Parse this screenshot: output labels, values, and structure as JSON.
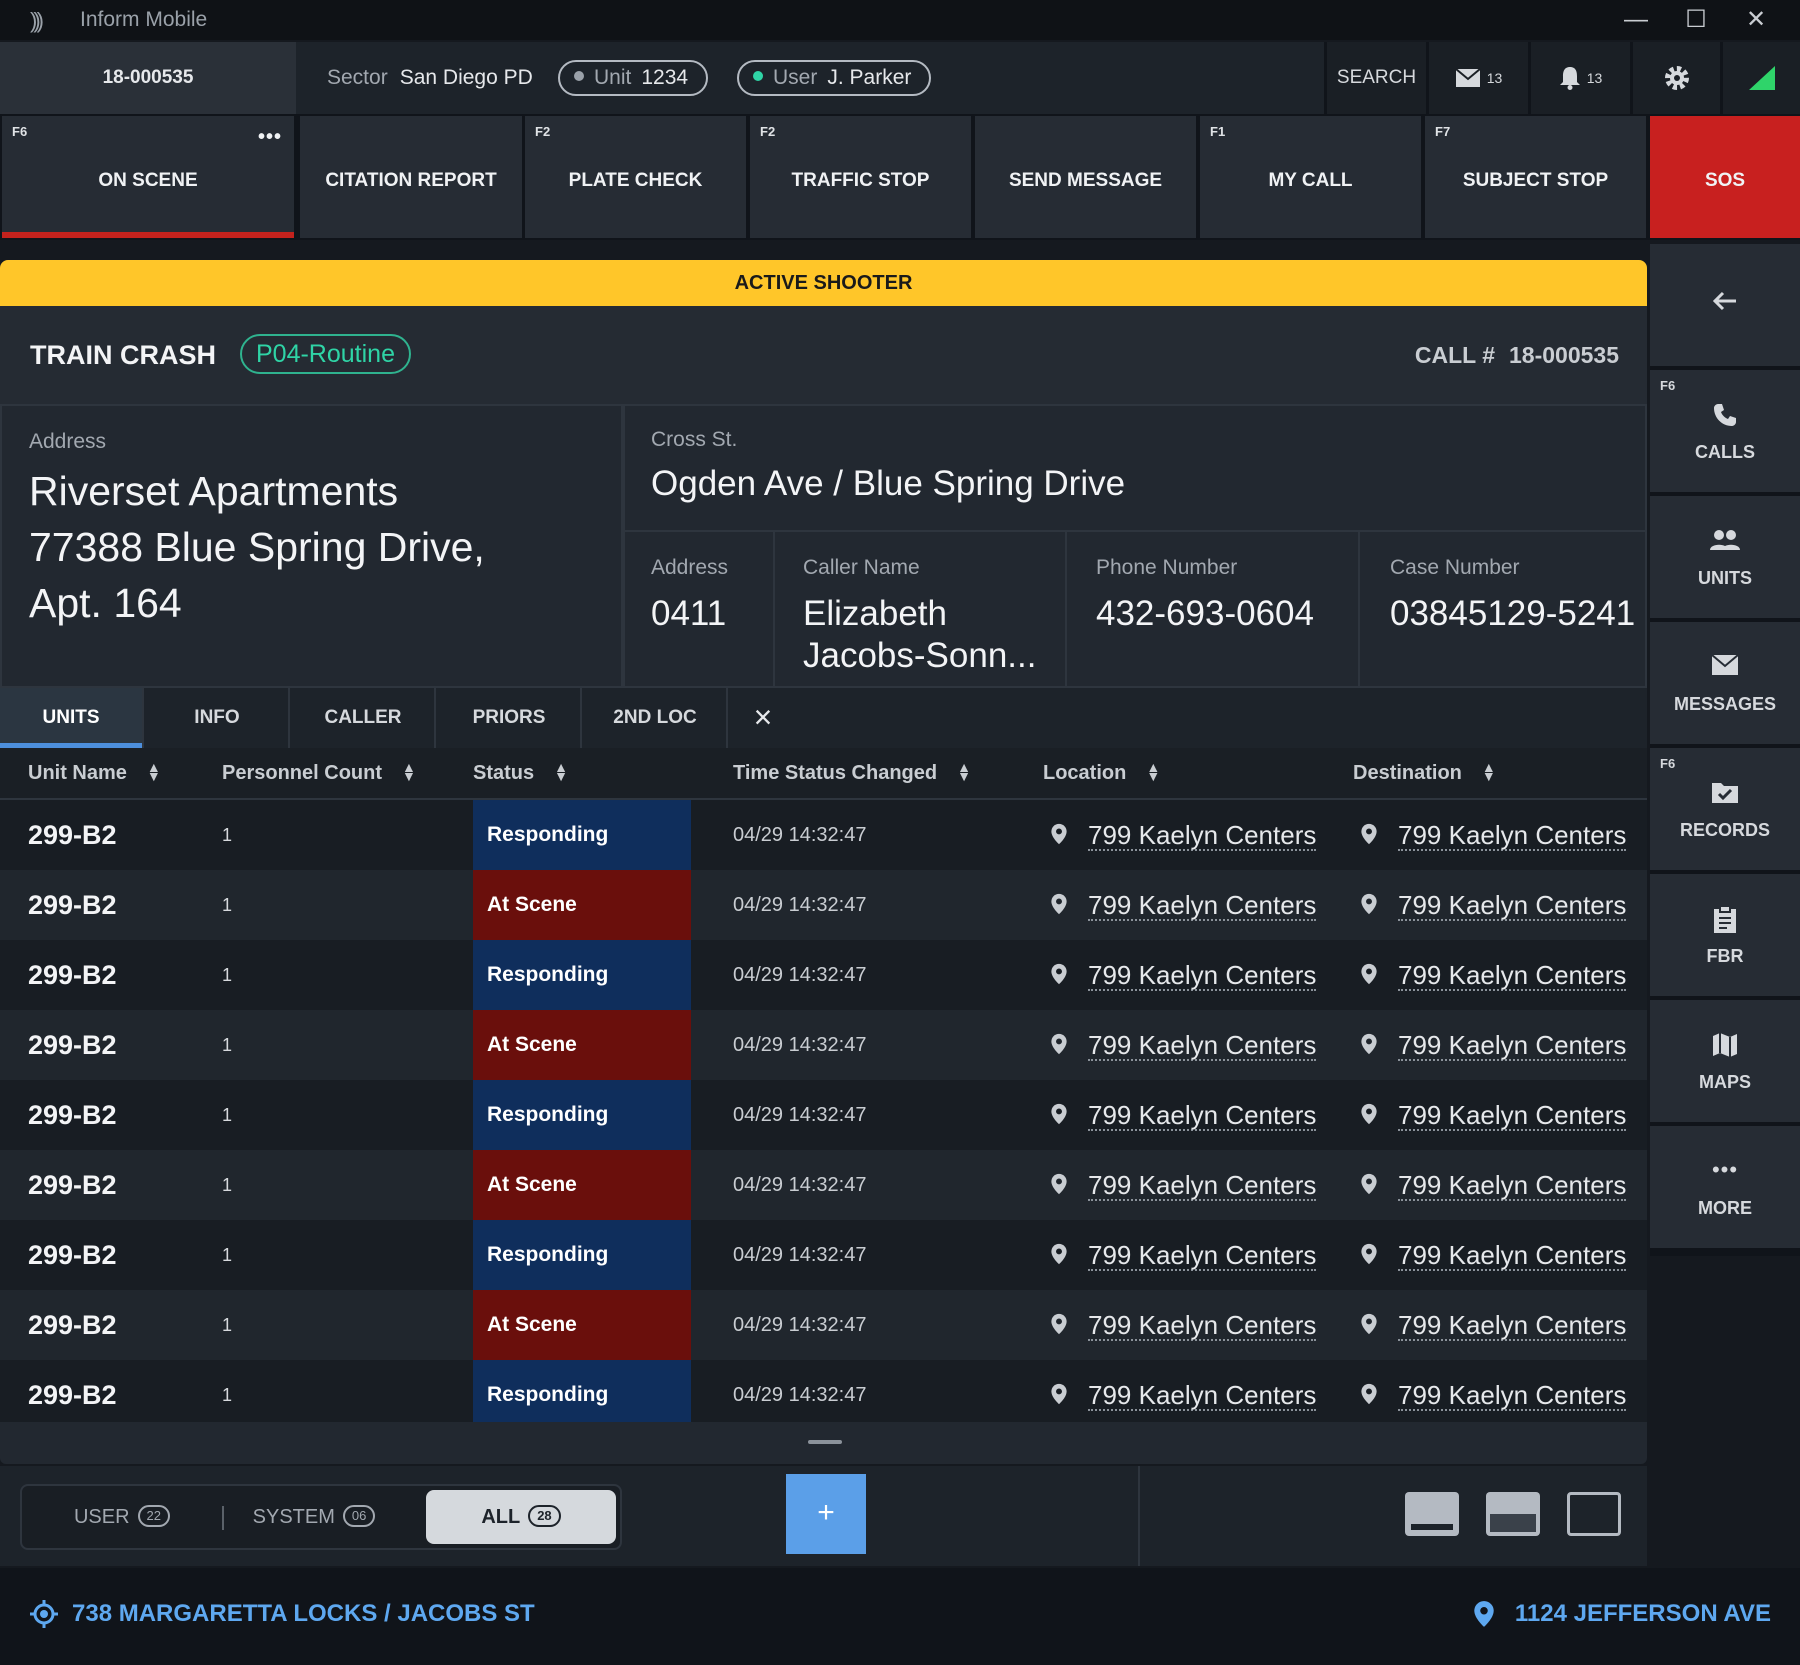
{
  "window": {
    "title": "Inform Mobile",
    "icon": "signal-waves-icon"
  },
  "header": {
    "call_id": "18-000535",
    "sector_label": "Sector",
    "sector_value": "San Diego PD",
    "unit_label": "Unit",
    "unit_value": "1234",
    "unit_status_color": "#9aa1a9",
    "user_label": "User",
    "user_value": "J. Parker",
    "user_status_color": "#2fd4a6",
    "search_label": "SEARCH",
    "mail_count": "13",
    "notification_count": "13"
  },
  "actions": [
    {
      "fkey": "F6",
      "label": "ON SCENE"
    },
    {
      "fkey": "",
      "label": "CITATION REPORT"
    },
    {
      "fkey": "F2",
      "label": "PLATE CHECK"
    },
    {
      "fkey": "F2",
      "label": "TRAFFIC STOP"
    },
    {
      "fkey": "",
      "label": "SEND MESSAGE"
    },
    {
      "fkey": "F1",
      "label": "MY CALL"
    },
    {
      "fkey": "F7",
      "label": "SUBJECT STOP"
    },
    {
      "fkey": "",
      "label": "SOS"
    }
  ],
  "alert": {
    "text": "ACTIVE SHOOTER",
    "color": "#ffc629"
  },
  "call": {
    "type": "TRAIN CRASH",
    "priority": "P04-Routine",
    "number_label": "CALL #",
    "number_value": "18-000535"
  },
  "details": {
    "address_label": "Address",
    "address_line1": "Riverset Apartments",
    "address_line2": "77388 Blue Spring Drive,",
    "address_line3": "Apt. 164",
    "cross_label": "Cross St.",
    "cross_value": "Ogden Ave / Blue Spring Drive",
    "address2_label": "Address",
    "address2_value": "0411",
    "caller_label": "Caller Name",
    "caller_line1": "Elizabeth",
    "caller_line2": "Jacobs-Sonn...",
    "phone_label": "Phone Number",
    "phone_value": "432-693-0604",
    "case_label": "Case Number",
    "case_value": "03845129-5241"
  },
  "tabs": [
    "UNITS",
    "INFO",
    "CALLER",
    "PRIORS",
    "2ND LOC"
  ],
  "table": {
    "columns": [
      "Unit Name",
      "Personnel Count",
      "Status",
      "Time Status Changed",
      "Location",
      "Destination"
    ],
    "rows": [
      {
        "unit": "299-B2",
        "count": "1",
        "status": "Responding",
        "time": "04/29 14:32:47",
        "location": "799 Kaelyn Centers",
        "destination": "799 Kaelyn Centers"
      },
      {
        "unit": "299-B2",
        "count": "1",
        "status": "At Scene",
        "time": "04/29 14:32:47",
        "location": "799 Kaelyn Centers",
        "destination": "799 Kaelyn Centers"
      },
      {
        "unit": "299-B2",
        "count": "1",
        "status": "Responding",
        "time": "04/29 14:32:47",
        "location": "799 Kaelyn Centers",
        "destination": "799 Kaelyn Centers"
      },
      {
        "unit": "299-B2",
        "count": "1",
        "status": "At Scene",
        "time": "04/29 14:32:47",
        "location": "799 Kaelyn Centers",
        "destination": "799 Kaelyn Centers"
      },
      {
        "unit": "299-B2",
        "count": "1",
        "status": "Responding",
        "time": "04/29 14:32:47",
        "location": "799 Kaelyn Centers",
        "destination": "799 Kaelyn Centers"
      },
      {
        "unit": "299-B2",
        "count": "1",
        "status": "At Scene",
        "time": "04/29 14:32:47",
        "location": "799 Kaelyn Centers",
        "destination": "799 Kaelyn Centers"
      },
      {
        "unit": "299-B2",
        "count": "1",
        "status": "Responding",
        "time": "04/29 14:32:47",
        "location": "799 Kaelyn Centers",
        "destination": "799 Kaelyn Centers"
      },
      {
        "unit": "299-B2",
        "count": "1",
        "status": "At Scene",
        "time": "04/29 14:32:47",
        "location": "799 Kaelyn Centers",
        "destination": "799 Kaelyn Centers"
      },
      {
        "unit": "299-B2",
        "count": "1",
        "status": "Responding",
        "time": "04/29 14:32:47",
        "location": "799 Kaelyn Centers",
        "destination": "799 Kaelyn Centers"
      }
    ]
  },
  "filters": [
    {
      "label": "USER",
      "count": "22"
    },
    {
      "label": "SYSTEM",
      "count": "06"
    },
    {
      "label": "ALL",
      "count": "28"
    }
  ],
  "add_label": "+",
  "footer": {
    "current_location": "738 MARGARETTA LOCKS / JACOBS ST",
    "destination": "1124 JEFFERSON AVE"
  },
  "sidebar": [
    {
      "fkey": "",
      "label": "",
      "icon": "back-arrow-icon"
    },
    {
      "fkey": "F6",
      "label": "CALLS",
      "icon": "phone-icon"
    },
    {
      "fkey": "",
      "label": "UNITS",
      "icon": "people-icon"
    },
    {
      "fkey": "",
      "label": "MESSAGES",
      "icon": "envelope-icon"
    },
    {
      "fkey": "F6",
      "label": "RECORDS",
      "icon": "checked-folder-icon"
    },
    {
      "fkey": "",
      "label": "FBR",
      "icon": "clipboard-icon"
    },
    {
      "fkey": "",
      "label": "MAPS",
      "icon": "map-icon"
    },
    {
      "fkey": "",
      "label": "MORE",
      "icon": "ellipsis-icon"
    }
  ]
}
